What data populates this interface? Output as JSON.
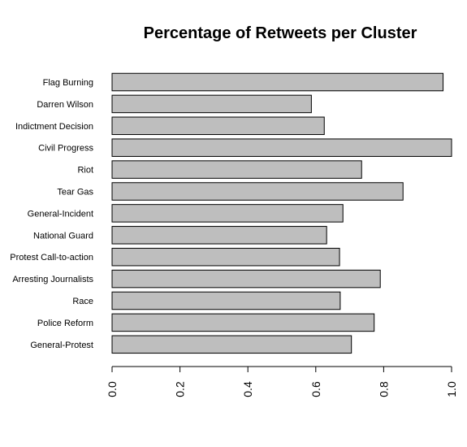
{
  "chart_data": {
    "type": "bar",
    "orientation": "horizontal",
    "title": "Percentage of Retweets per Cluster",
    "xlabel": "",
    "ylabel": "",
    "categories": [
      "Flag Burning",
      "Darren Wilson",
      "Indictment Decision",
      "Civil Progress",
      "Riot",
      "Tear Gas",
      "General-Incident",
      "National Guard",
      "Protest Call-to-action",
      "Arresting Journalists",
      "Race",
      "Police Reform",
      "General-Protest"
    ],
    "values": [
      0.975,
      0.587,
      0.625,
      1.0,
      0.735,
      0.857,
      0.68,
      0.632,
      0.67,
      0.79,
      0.672,
      0.772,
      0.705
    ],
    "xlim": [
      0,
      1.0
    ],
    "xticks": [
      0.0,
      0.2,
      0.4,
      0.6,
      0.8,
      1.0
    ],
    "xtick_labels": [
      "0.0",
      "0.2",
      "0.4",
      "0.6",
      "0.8",
      "1.0"
    ],
    "grid": false,
    "legend": "none",
    "bar_color": "#bebebe",
    "bar_edge_color": "#000000"
  }
}
